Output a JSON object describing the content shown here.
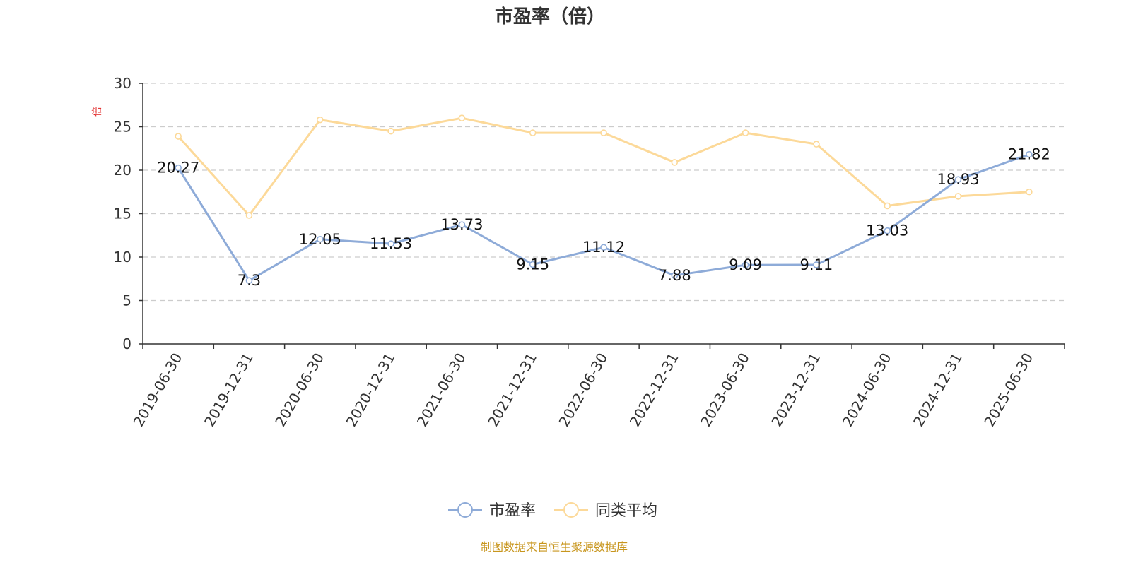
{
  "colors": {
    "pe": "#8eabd8",
    "avg": "#fcd999",
    "unit": "#e02020",
    "source": "#c8961e",
    "axis": "#333333",
    "grid": "#cccccc"
  },
  "source_note": "制图数据来自恒生聚源数据库",
  "chart_data": {
    "type": "line",
    "title": "市盈率（倍）",
    "ylabel": "倍",
    "xlabel": "",
    "ylim": [
      0,
      30
    ],
    "yticks": [
      0,
      5,
      10,
      15,
      20,
      25,
      30
    ],
    "grid": true,
    "legend_position": "bottom-center",
    "categories": [
      "2019-06-30",
      "2019-12-31",
      "2020-06-30",
      "2020-12-31",
      "2021-06-30",
      "2021-12-31",
      "2022-06-30",
      "2022-12-31",
      "2023-06-30",
      "2023-12-31",
      "2024-06-30",
      "2024-12-31",
      "2025-06-30"
    ],
    "series": [
      {
        "name": "市盈率",
        "values": [
          20.27,
          7.3,
          12.05,
          11.53,
          13.73,
          9.15,
          11.12,
          7.88,
          9.09,
          9.11,
          13.03,
          18.93,
          21.82
        ],
        "labels": [
          "20.27",
          "7.3",
          "12.05",
          "11.53",
          "13.73",
          "9.15",
          "11.12",
          "7.88",
          "9.09",
          "9.11",
          "13.03",
          "18.93",
          "21.82"
        ]
      },
      {
        "name": "同类平均",
        "values": [
          23.9,
          14.8,
          25.8,
          24.5,
          26.0,
          24.3,
          24.3,
          20.9,
          24.3,
          23.0,
          15.9,
          17.0,
          17.5
        ]
      }
    ]
  }
}
